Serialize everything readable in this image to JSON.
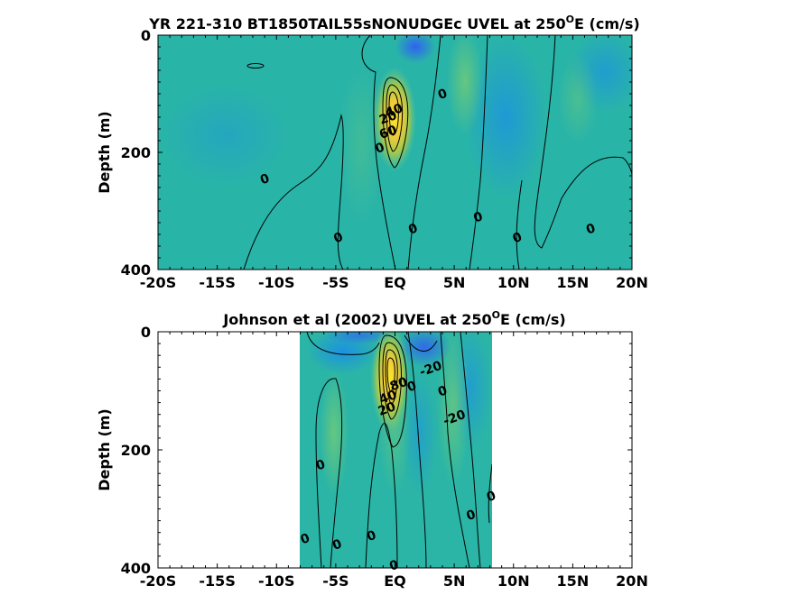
{
  "chart_data": [
    {
      "type": "heatmap",
      "title": "YR 221-310 BT1850TAIL55sNONUDGEc UVEL at 250",
      "title_superscript": "O",
      "title_suffix": "E (cm/s)",
      "ylabel": "Depth (m)",
      "xlim": [
        -20,
        20
      ],
      "ylim": [
        0,
        400
      ],
      "y_reversed": true,
      "x_tick_labels": [
        "-20S",
        "-15S",
        "-10S",
        "-5S",
        "EQ",
        "5N",
        "10N",
        "15N",
        "20N"
      ],
      "y_tick_labels": [
        "0",
        "200",
        "400"
      ],
      "data_extent_lon": [
        -20,
        20
      ],
      "core": {
        "lon": 0,
        "depth": 110,
        "max_value": 100
      },
      "contour_labels": [
        {
          "text": "0",
          "lon": -11,
          "depth": 245
        },
        {
          "text": "0",
          "lon": -4.8,
          "depth": 345
        },
        {
          "text": "0",
          "lon": -1.3,
          "depth": 192
        },
        {
          "text": "0",
          "lon": 4,
          "depth": 100
        },
        {
          "text": "0",
          "lon": 7,
          "depth": 310
        },
        {
          "text": "0",
          "lon": 1.5,
          "depth": 330
        },
        {
          "text": "0",
          "lon": 10.3,
          "depth": 345
        },
        {
          "text": "0",
          "lon": 16.5,
          "depth": 330
        },
        {
          "text": "20",
          "lon": -0.6,
          "depth": 140
        },
        {
          "text": "60",
          "lon": -0.6,
          "depth": 165
        },
        {
          "text": "40",
          "lon": -0.1,
          "depth": 128
        }
      ]
    },
    {
      "type": "heatmap",
      "title": "Johnson et al (2002) UVEL at 250",
      "title_superscript": "O",
      "title_suffix": "E (cm/s)",
      "ylabel": "Depth (m)",
      "xlim": [
        -20,
        20
      ],
      "ylim": [
        0,
        400
      ],
      "y_reversed": true,
      "x_tick_labels": [
        "-20S",
        "-15S",
        "-10S",
        "-5S",
        "EQ",
        "5N",
        "10N",
        "15N",
        "20N"
      ],
      "y_tick_labels": [
        "0",
        "200",
        "400"
      ],
      "data_extent_lon": [
        -8,
        8.2
      ],
      "core": {
        "lon": -0.3,
        "depth": 60,
        "max_value": 100
      },
      "contour_labels": [
        {
          "text": "0",
          "lon": -6.3,
          "depth": 225
        },
        {
          "text": "0",
          "lon": -7.6,
          "depth": 350
        },
        {
          "text": "0",
          "lon": -4.9,
          "depth": 360
        },
        {
          "text": "0",
          "lon": -2,
          "depth": 345
        },
        {
          "text": "0",
          "lon": -0.1,
          "depth": 395
        },
        {
          "text": "0",
          "lon": 4,
          "depth": 100
        },
        {
          "text": "0",
          "lon": 6.4,
          "depth": 310
        },
        {
          "text": "0",
          "lon": 8.1,
          "depth": 278
        },
        {
          "text": "0",
          "lon": 1.4,
          "depth": 92
        },
        {
          "text": "-20",
          "lon": 3,
          "depth": 62
        },
        {
          "text": "-20",
          "lon": 5,
          "depth": 145
        },
        {
          "text": "20",
          "lon": -0.7,
          "depth": 130
        },
        {
          "text": "40",
          "lon": -0.6,
          "depth": 110
        },
        {
          "text": "80",
          "lon": 0.3,
          "depth": 88
        }
      ]
    }
  ],
  "colors": {
    "background_field": "#2bb5a6",
    "negative_field": "#1c9fe0",
    "strong_negative": "#2b6ef0",
    "weak_positive": "#5cc58a",
    "positive_mid": "#c8c43a",
    "core_max": "#f9e62a"
  }
}
